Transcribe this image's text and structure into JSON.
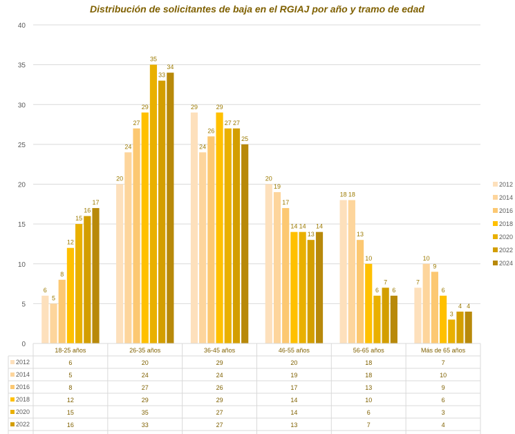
{
  "chart_data": {
    "type": "bar",
    "title": "Distribución de solicitantes de baja en el RGIAJ por año y tramo de edad",
    "xlabel": "",
    "ylabel": "",
    "ylim": [
      0,
      40
    ],
    "yticks": [
      0,
      5,
      10,
      15,
      20,
      25,
      30,
      35,
      40
    ],
    "grid": true,
    "legend_position": "right",
    "categories": [
      "18-25 años",
      "26-35 años",
      "36-45 años",
      "46-55 años",
      "56-65 años",
      "Más de 65 años"
    ],
    "series": [
      {
        "name": "2012",
        "color": "#FDE0BC",
        "values": [
          6,
          20,
          29,
          20,
          18,
          7
        ]
      },
      {
        "name": "2014",
        "color": "#FDD59C",
        "values": [
          5,
          24,
          24,
          19,
          18,
          10
        ]
      },
      {
        "name": "2016",
        "color": "#FCC872",
        "values": [
          8,
          27,
          26,
          17,
          13,
          9
        ]
      },
      {
        "name": "2018",
        "color": "#FFC000",
        "values": [
          12,
          29,
          29,
          14,
          10,
          6
        ]
      },
      {
        "name": "2020",
        "color": "#E9B000",
        "values": [
          15,
          35,
          27,
          14,
          6,
          3
        ]
      },
      {
        "name": "2022",
        "color": "#D39E00",
        "values": [
          16,
          33,
          27,
          13,
          7,
          4
        ]
      },
      {
        "name": "2024",
        "color": "#B8890A",
        "values": [
          17,
          34,
          25,
          14,
          6,
          4
        ]
      }
    ],
    "data_table": true
  }
}
